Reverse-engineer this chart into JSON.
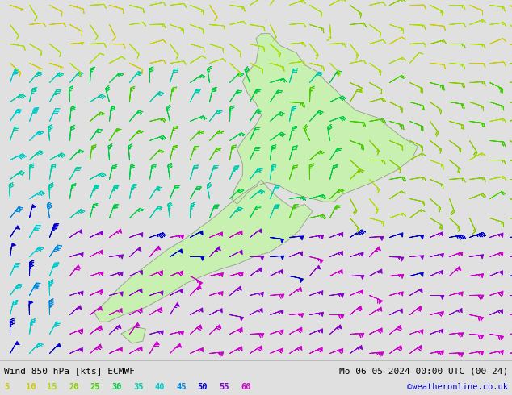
{
  "title_left": "Wind 850 hPa [kts] ECMWF",
  "title_right": "Mo 06-05-2024 00:00 UTC (00+24)",
  "credit": "©weatheronline.co.uk",
  "legend_values": [
    5,
    10,
    15,
    20,
    25,
    30,
    35,
    40,
    45,
    50,
    55,
    60
  ],
  "bg_color": "#e0e0e0",
  "land_color": "#c8f0b0",
  "coast_color": "#999999",
  "fig_width": 6.34,
  "fig_height": 4.9,
  "dpi": 100,
  "lon_min": 163,
  "lon_max": 182,
  "lat_min": -48,
  "lat_max": -33
}
